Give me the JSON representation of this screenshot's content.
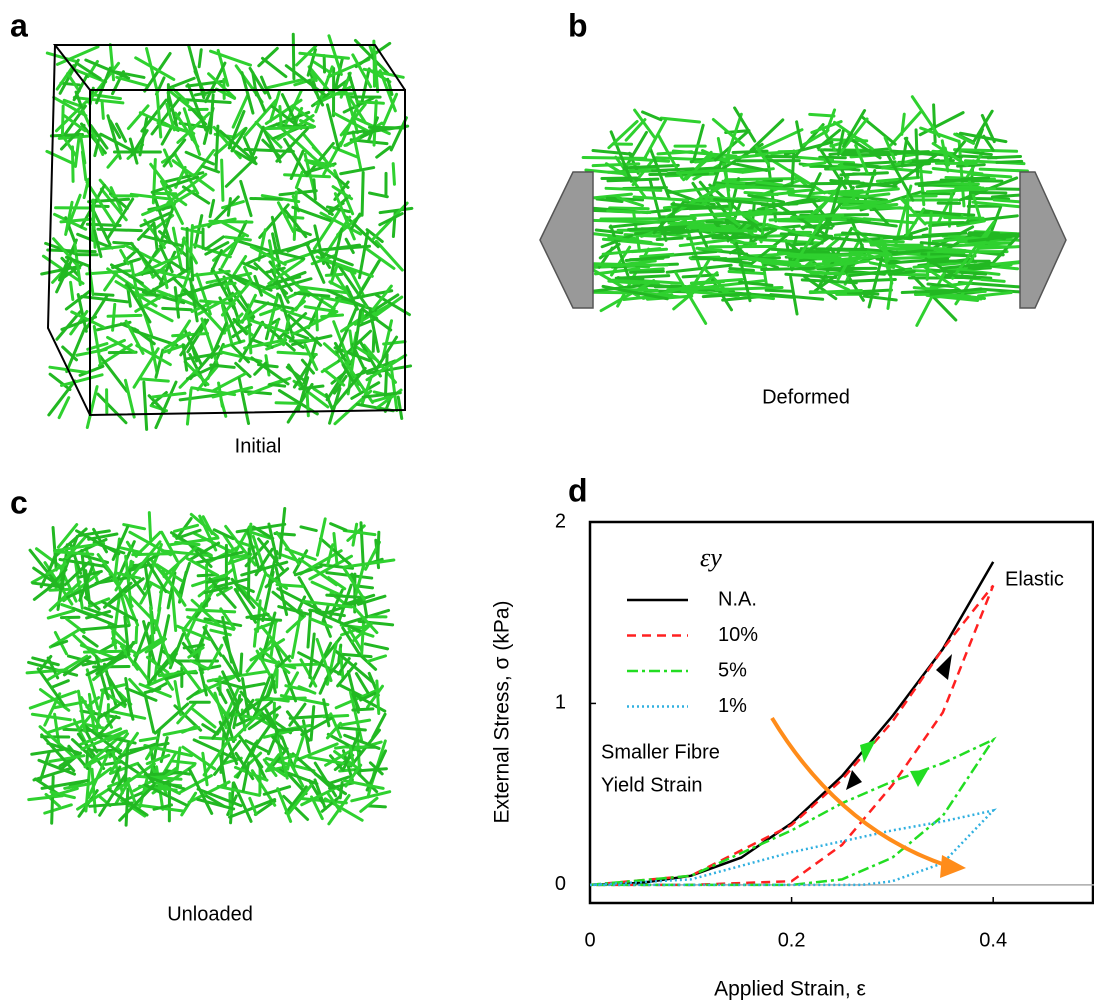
{
  "panels": [
    {
      "letter": "a",
      "caption": "Initial"
    },
    {
      "letter": "b",
      "caption": "Deformed"
    },
    {
      "letter": "c",
      "caption": "Unloaded"
    },
    {
      "letter": "d"
    }
  ],
  "chart_data": {
    "type": "line",
    "x_label": "Applied Strain, ε",
    "y_label": "External Stress, σ (kPa)",
    "legend_title": "εy",
    "annotations": [
      {
        "text": "Elastic",
        "color": "#000000"
      },
      {
        "lines": [
          "Smaller Fibre",
          "Yield Strain"
        ],
        "color": "#ff8c1a"
      }
    ],
    "xlim": [
      0,
      0.5
    ],
    "ylim": [
      -0.1,
      2
    ],
    "xticks": [
      0,
      0.2,
      0.4
    ],
    "yticks": [
      0,
      1,
      2
    ],
    "series": [
      {
        "name": "N.A.",
        "color": "#000000",
        "dash": "solid",
        "x": [
          0,
          0.05,
          0.1,
          0.15,
          0.2,
          0.25,
          0.3,
          0.35,
          0.4
        ],
        "values": [
          0,
          0.01,
          0.05,
          0.15,
          0.34,
          0.6,
          0.93,
          1.3,
          1.78
        ]
      },
      {
        "name": "10%",
        "color": "#ff2020",
        "dash": "dashed",
        "x": [
          0,
          0.1,
          0.2,
          0.25,
          0.3,
          0.35,
          0.4,
          0.35,
          0.3,
          0.25,
          0.2,
          0.1,
          0
        ],
        "values": [
          0,
          0.05,
          0.33,
          0.58,
          0.9,
          1.3,
          1.65,
          0.95,
          0.55,
          0.22,
          0.02,
          0,
          0
        ]
      },
      {
        "name": "5%",
        "color": "#22dd22",
        "dash": "dashdot",
        "x": [
          0,
          0.1,
          0.2,
          0.25,
          0.3,
          0.35,
          0.4,
          0.35,
          0.3,
          0.25,
          0.2,
          0.1,
          0
        ],
        "values": [
          0,
          0.05,
          0.3,
          0.45,
          0.57,
          0.67,
          0.8,
          0.38,
          0.15,
          0.03,
          0,
          0,
          0
        ]
      },
      {
        "name": "1%",
        "color": "#30b0e0",
        "dash": "dotted",
        "x": [
          0,
          0.1,
          0.2,
          0.3,
          0.35,
          0.4,
          0.35,
          0.3,
          0.27,
          0.1,
          0
        ],
        "values": [
          0,
          0.03,
          0.18,
          0.3,
          0.35,
          0.41,
          0.12,
          0.02,
          0,
          0,
          0
        ]
      }
    ]
  }
}
